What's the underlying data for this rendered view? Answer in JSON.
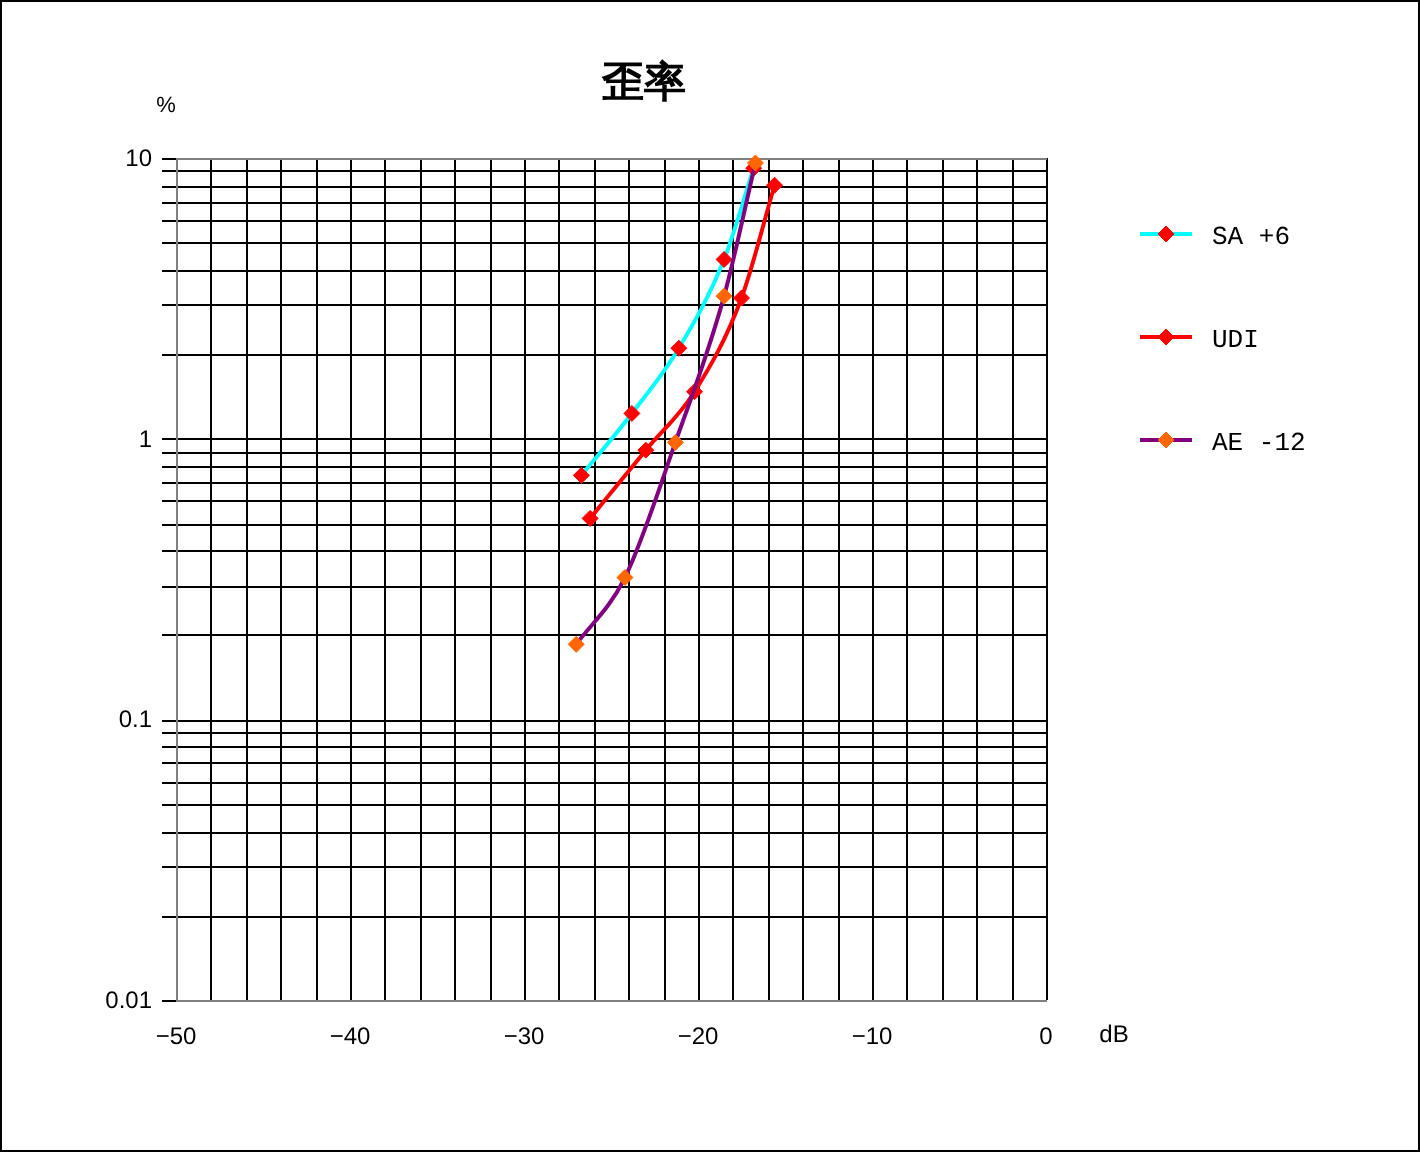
{
  "chart_data": {
    "type": "line",
    "title": "歪率",
    "xlabel": "dB",
    "ylabel": "%",
    "log": "y",
    "xlim": [
      -50,
      0
    ],
    "ylim": [
      0.01,
      10
    ],
    "xticks": [
      -50,
      {
        "value": -48,
        "label": null
      },
      {
        "value": -46,
        "label": null
      },
      {
        "value": -44,
        "label": null
      },
      {
        "value": -42,
        "label": null
      },
      -40,
      {
        "value": -38,
        "label": null
      },
      {
        "value": -36,
        "label": null
      },
      {
        "value": -34,
        "label": null
      },
      {
        "value": -32,
        "label": null
      },
      -30,
      {
        "value": -28,
        "label": null
      },
      {
        "value": -26,
        "label": null
      },
      {
        "value": -24,
        "label": null
      },
      {
        "value": -22,
        "label": null
      },
      -20,
      {
        "value": -18,
        "label": null
      },
      {
        "value": -16,
        "label": null
      },
      {
        "value": -14,
        "label": null
      },
      {
        "value": -12,
        "label": null
      },
      -10,
      {
        "value": -8,
        "label": null
      },
      {
        "value": -6,
        "label": null
      },
      {
        "value": -4,
        "label": null
      },
      {
        "value": -2,
        "label": null
      },
      0
    ],
    "yticks": [
      0.01,
      {
        "value": 0.02,
        "label": null
      },
      {
        "value": 0.03,
        "label": null
      },
      {
        "value": 0.04,
        "label": null
      },
      {
        "value": 0.05,
        "label": null
      },
      {
        "value": 0.06,
        "label": null
      },
      {
        "value": 0.07,
        "label": null
      },
      {
        "value": 0.08,
        "label": null
      },
      {
        "value": 0.09,
        "label": null
      },
      0.1,
      {
        "value": 0.2,
        "label": null
      },
      {
        "value": 0.3,
        "label": null
      },
      {
        "value": 0.4,
        "label": null
      },
      {
        "value": 0.5,
        "label": null
      },
      {
        "value": 0.6,
        "label": null
      },
      {
        "value": 0.7,
        "label": null
      },
      {
        "value": 0.8,
        "label": null
      },
      {
        "value": 0.9,
        "label": null
      },
      1,
      {
        "value": 2,
        "label": null
      },
      {
        "value": 3,
        "label": null
      },
      {
        "value": 4,
        "label": null
      },
      {
        "value": 5,
        "label": null
      },
      {
        "value": 6,
        "label": null
      },
      {
        "value": 7,
        "label": null
      },
      {
        "value": 8,
        "label": null
      },
      {
        "value": 9,
        "label": null
      },
      10
    ],
    "grid": true,
    "legend": "right",
    "marker": "diamond",
    "series": [
      {
        "name": "SA +6",
        "color": "#00ffff",
        "colors": [
          "#ff0000",
          "#ff0000",
          "#ff0000",
          "#ff0000",
          "#ff0000"
        ],
        "x": [
          -26.7,
          -23.8,
          -21.1,
          -18.5,
          -16.8
        ],
        "values": [
          0.74,
          1.23,
          2.1,
          4.35,
          9.2
        ]
      },
      {
        "name": "UDI",
        "color": "#ff0000",
        "colors": [
          "#ff0000",
          "#ff0000",
          "#ff0000",
          "#ff0000",
          "#ff0000"
        ],
        "x": [
          -26.2,
          -23.0,
          -20.2,
          -17.5,
          -15.6
        ],
        "values": [
          0.52,
          0.91,
          1.47,
          3.17,
          8.0
        ]
      },
      {
        "name": "AE -12",
        "color": "#800080",
        "colors": [
          "#ff6600",
          "#ff6600",
          "#ff6600",
          "#ff6600",
          "#ff6600"
        ],
        "x": [
          -27.0,
          -24.2,
          -21.3,
          -18.5,
          -16.7
        ],
        "values": [
          0.185,
          0.32,
          0.97,
          3.22,
          9.6
        ]
      }
    ]
  }
}
